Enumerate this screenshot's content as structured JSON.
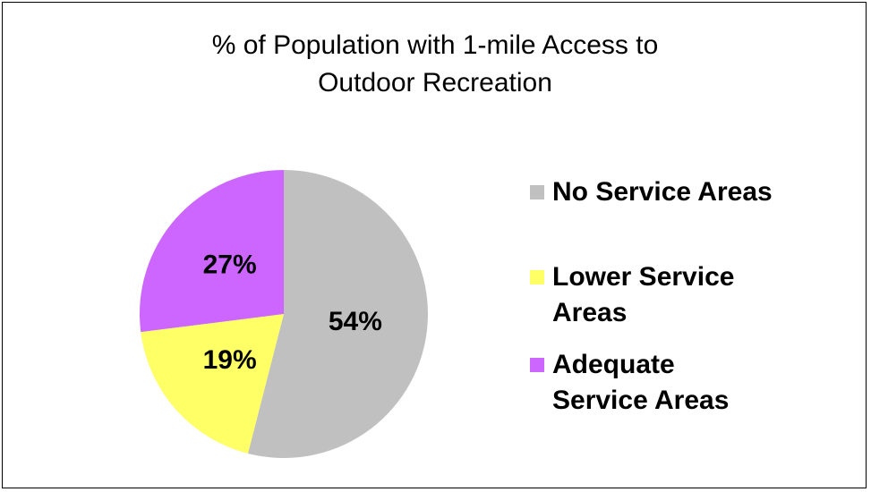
{
  "chart_data": {
    "type": "pie",
    "title": "% of Population with 1-mile Access to Outdoor Recreation",
    "categories": [
      "No Service Areas",
      "Lower Service Areas",
      "Adequate Service Areas"
    ],
    "values": [
      54,
      19,
      27
    ],
    "value_labels": [
      "54%",
      "19%",
      "27%"
    ],
    "colors": [
      "#c0c0c0",
      "#ffff66",
      "#cc66ff"
    ],
    "legend": "right"
  }
}
